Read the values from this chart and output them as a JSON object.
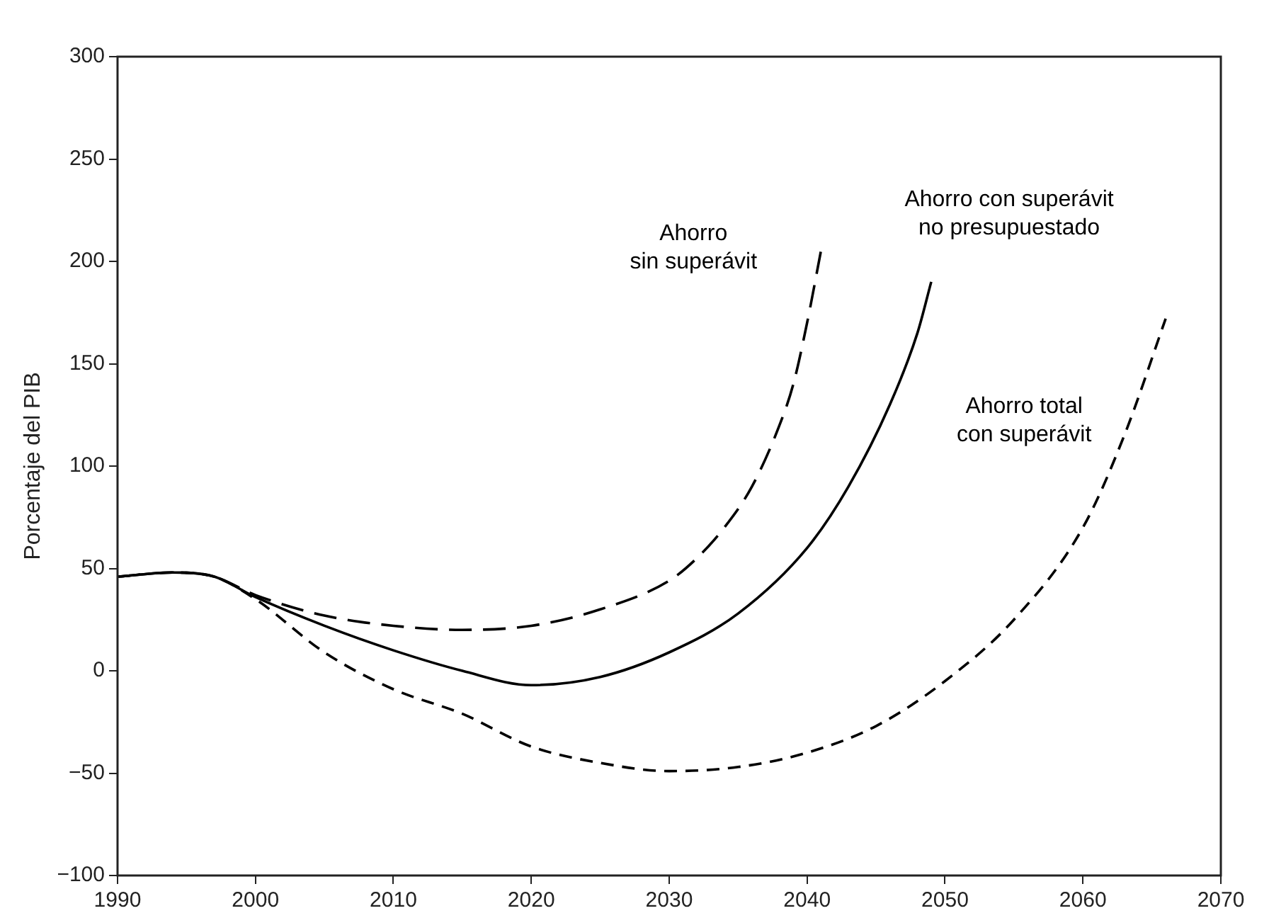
{
  "chart_data": {
    "type": "line",
    "ylabel": "Porcentaje del PIB",
    "xlim": [
      1990,
      2070
    ],
    "xticks": [
      1990,
      2000,
      2010,
      2020,
      2030,
      2040,
      2050,
      2060,
      2070
    ],
    "ylim": [
      -100,
      300
    ],
    "yticks": [
      {
        "value": -100,
        "label": "−100"
      },
      {
        "value": -50,
        "label": "−50"
      },
      0,
      50,
      100,
      150,
      200,
      250,
      300
    ],
    "grid": false,
    "legend": false,
    "marker": "none",
    "series": [
      {
        "name": "Ahorro sin superávit",
        "color": "#000000",
        "line_style": "dashed",
        "x": [
          1990,
          1994,
          1997,
          2000,
          2005,
          2010,
          2015,
          2020,
          2025,
          2030,
          2032,
          2034,
          2036,
          2038,
          2039,
          2040,
          2041
        ],
        "values": [
          46,
          48,
          46,
          37,
          27,
          22,
          20,
          22,
          30,
          44,
          55,
          70,
          90,
          120,
          140,
          170,
          205
        ]
      },
      {
        "name": "Ahorro con superávit no presupuestado",
        "color": "#000000",
        "line_style": "solid",
        "x": [
          1990,
          1994,
          1997,
          2000,
          2005,
          2010,
          2015,
          2020,
          2025,
          2030,
          2035,
          2040,
          2043,
          2046,
          2048,
          2049
        ],
        "values": [
          46,
          48,
          46,
          36,
          22,
          10,
          0,
          -7,
          -3,
          9,
          28,
          60,
          90,
          130,
          165,
          190
        ]
      },
      {
        "name": "Ahorro total con superávit",
        "color": "#000000",
        "line_style": "dashed",
        "x": [
          1990,
          1994,
          1997,
          2000,
          2005,
          2010,
          2015,
          2020,
          2025,
          2030,
          2035,
          2040,
          2045,
          2050,
          2055,
          2060,
          2063,
          2066
        ],
        "values": [
          46,
          48,
          46,
          35,
          9,
          -9,
          -21,
          -37,
          -45,
          -49,
          -47,
          -40,
          -27,
          -5,
          25,
          70,
          115,
          172
        ]
      }
    ]
  }
}
